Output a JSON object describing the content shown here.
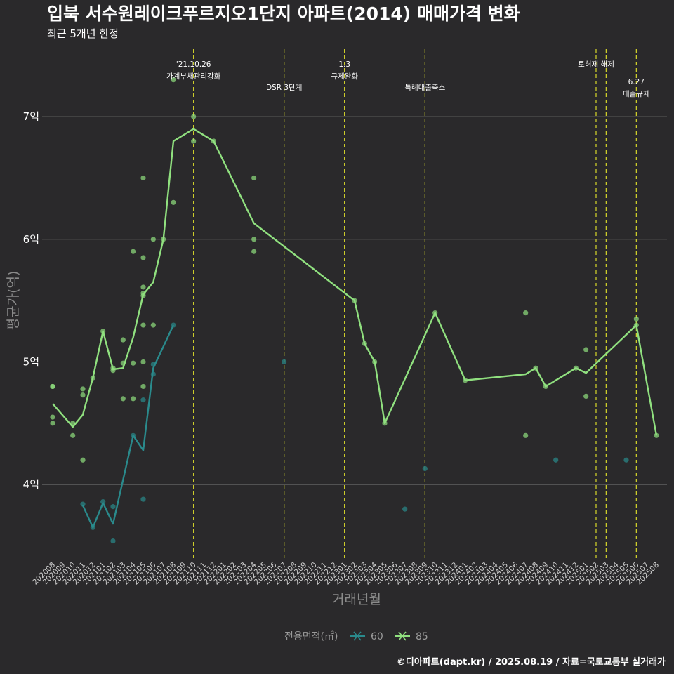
{
  "chart_data": {
    "type": "line",
    "title": "입북 서수원레이크푸르지오1단지 아파트(2014) 매매가격 변화",
    "subtitle": "최근 5개년 한정",
    "xlabel": "거래년월",
    "ylabel": "평균가(억)",
    "ylim": [
      3.4,
      7.55
    ],
    "y_ticks": [
      4,
      5,
      6,
      7
    ],
    "y_tick_labels": [
      "4억",
      "5억",
      "6억",
      "7억"
    ],
    "grid": true,
    "legend_position": "bottom",
    "legend_title": "전용면적(㎡)",
    "categories": [
      "202008",
      "202009",
      "202010",
      "202011",
      "202012",
      "202101",
      "202102",
      "202103",
      "202104",
      "202105",
      "202106",
      "202107",
      "202108",
      "202109",
      "202110",
      "202111",
      "202112",
      "202201",
      "202202",
      "202203",
      "202204",
      "202205",
      "202206",
      "202207",
      "202208",
      "202209",
      "202210",
      "202211",
      "202212",
      "202301",
      "202302",
      "202303",
      "202304",
      "202305",
      "202306",
      "202307",
      "202308",
      "202309",
      "202310",
      "202311",
      "202312",
      "202401",
      "202402",
      "202403",
      "202404",
      "202405",
      "202406",
      "202407",
      "202408",
      "202409",
      "202410",
      "202411",
      "202412",
      "202501",
      "202502",
      "202503",
      "202504",
      "202505",
      "202506",
      "202507",
      "202508"
    ],
    "series": [
      {
        "name": "60",
        "color": "#2a8a8c",
        "line": [
          [
            "202011",
            3.83
          ],
          [
            "202012",
            3.65
          ],
          [
            "202101",
            3.85
          ],
          [
            "202102",
            3.68
          ],
          [
            "202104",
            4.4
          ],
          [
            "202105",
            4.28
          ],
          [
            "202106",
            4.95
          ],
          [
            "202108",
            5.3
          ]
        ],
        "points": [
          [
            "202011",
            3.84
          ],
          [
            "202012",
            3.65
          ],
          [
            "202101",
            3.86
          ],
          [
            "202102",
            3.82
          ],
          [
            "202102",
            3.54
          ],
          [
            "202104",
            4.4
          ],
          [
            "202105",
            4.69
          ],
          [
            "202105",
            3.88
          ],
          [
            "202106",
            4.98
          ],
          [
            "202106",
            4.9
          ],
          [
            "202108",
            5.3
          ],
          [
            "202207",
            5.0
          ],
          [
            "202309",
            4.13
          ],
          [
            "202307",
            3.8
          ],
          [
            "202410",
            4.2
          ],
          [
            "202505",
            4.2
          ]
        ]
      },
      {
        "name": "85",
        "color": "#90e07f",
        "line": [
          [
            "202008",
            4.66
          ],
          [
            "202010",
            4.47
          ],
          [
            "202011",
            4.57
          ],
          [
            "202012",
            4.87
          ],
          [
            "202101",
            5.25
          ],
          [
            "202102",
            4.94
          ],
          [
            "202103",
            4.95
          ],
          [
            "202104",
            5.2
          ],
          [
            "202105",
            5.55
          ],
          [
            "202106",
            5.65
          ],
          [
            "202107",
            6.0
          ],
          [
            "202108",
            6.8
          ],
          [
            "202110",
            6.9
          ],
          [
            "202112",
            6.8
          ],
          [
            "202204",
            6.13
          ],
          [
            "202302",
            5.5
          ],
          [
            "202303",
            5.15
          ],
          [
            "202304",
            5.0
          ],
          [
            "202305",
            4.5
          ],
          [
            "202310",
            5.4
          ],
          [
            "202401",
            4.85
          ],
          [
            "202407",
            4.9
          ],
          [
            "202408",
            4.95
          ],
          [
            "202409",
            4.8
          ],
          [
            "202412",
            4.95
          ],
          [
            "202501",
            4.91
          ],
          [
            "202506",
            5.3
          ],
          [
            "202508",
            4.4
          ]
        ],
        "points": [
          [
            "202008",
            4.8
          ],
          [
            "202008",
            4.8
          ],
          [
            "202008",
            4.55
          ],
          [
            "202008",
            4.5
          ],
          [
            "202010",
            4.5
          ],
          [
            "202010",
            4.4
          ],
          [
            "202011",
            4.78
          ],
          [
            "202011",
            4.73
          ],
          [
            "202011",
            4.2
          ],
          [
            "202012",
            4.87
          ],
          [
            "202101",
            5.25
          ],
          [
            "202102",
            4.95
          ],
          [
            "202102",
            4.93
          ],
          [
            "202103",
            5.18
          ],
          [
            "202103",
            4.99
          ],
          [
            "202103",
            4.7
          ],
          [
            "202104",
            5.9
          ],
          [
            "202104",
            4.99
          ],
          [
            "202104",
            4.7
          ],
          [
            "202105",
            6.5
          ],
          [
            "202105",
            5.85
          ],
          [
            "202105",
            5.61
          ],
          [
            "202105",
            5.56
          ],
          [
            "202105",
            5.54
          ],
          [
            "202105",
            5.3
          ],
          [
            "202105",
            5.0
          ],
          [
            "202105",
            4.8
          ],
          [
            "202106",
            6.0
          ],
          [
            "202106",
            5.3
          ],
          [
            "202107",
            6.0
          ],
          [
            "202108",
            7.3
          ],
          [
            "202108",
            6.3
          ],
          [
            "202110",
            7.0
          ],
          [
            "202110",
            6.8
          ],
          [
            "202112",
            6.8
          ],
          [
            "202204",
            6.5
          ],
          [
            "202204",
            6.0
          ],
          [
            "202204",
            5.9
          ],
          [
            "202302",
            5.5
          ],
          [
            "202303",
            5.15
          ],
          [
            "202304",
            5.0
          ],
          [
            "202305",
            4.5
          ],
          [
            "202310",
            5.4
          ],
          [
            "202401",
            4.85
          ],
          [
            "202407",
            5.4
          ],
          [
            "202407",
            4.4
          ],
          [
            "202408",
            4.95
          ],
          [
            "202409",
            4.8
          ],
          [
            "202412",
            4.95
          ],
          [
            "202501",
            5.1
          ],
          [
            "202501",
            4.72
          ],
          [
            "202506",
            5.35
          ],
          [
            "202506",
            5.3
          ],
          [
            "202508",
            4.4
          ]
        ]
      }
    ],
    "annotations": [
      {
        "x": "202110",
        "lines": [
          "'21.10.26",
          "가계부채관리강화"
        ],
        "top": true
      },
      {
        "x": "202207",
        "lines": [
          "DSR 3단계"
        ],
        "top": false
      },
      {
        "x": "202301",
        "lines": [
          "1.3",
          "규제완화"
        ],
        "top": true
      },
      {
        "x": "202309",
        "lines": [
          "특례대출축소"
        ],
        "top": false
      },
      {
        "x": "202502",
        "lines": [
          "토허제 해제"
        ],
        "top": true
      },
      {
        "x": "202503",
        "lines": [],
        "top": true
      },
      {
        "x": "202506",
        "lines": [
          "6.27",
          "대출규제"
        ],
        "top": false
      }
    ],
    "caption": "©디아파트(dapt.kr) / 2025.08.19 / 자료=국토교통부 실거래가"
  }
}
